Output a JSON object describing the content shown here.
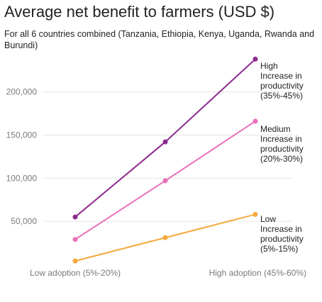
{
  "title": "Average net benefit to farmers (USD $)",
  "subtitle": "For all 6 countries combined (Tanzania, Ethiopia, Kenya, Uganda, Rwanda and Burundi)",
  "chart_data": {
    "type": "line",
    "title": "Average net benefit to farmers (USD $)",
    "subtitle": "For all 6 countries combined (Tanzania, Ethiopia, Kenya, Uganda, Rwanda and Burundi)",
    "x_categories": [
      "Low adoption (5%-20%)",
      "",
      "High adoption (45%-60%)"
    ],
    "y_ticks": [
      50000,
      100000,
      150000,
      200000
    ],
    "y_tick_labels": [
      "50,000",
      "100,000",
      "150,000",
      "200,000"
    ],
    "ylim": [
      0,
      250000
    ],
    "grid": true,
    "legend": "inline labels at line ends",
    "series": [
      {
        "name": "High Increase in productivity (35%-45%)",
        "label_lines": [
          "High",
          "Increase in",
          "productivity",
          "(35%-45%)"
        ],
        "color": "#8b2a8e",
        "values": [
          55000,
          142000,
          238000
        ]
      },
      {
        "name": "Medium Increase in productivity (20%-30%)",
        "label_lines": [
          "Medium",
          "Increase in",
          "productivity",
          "(20%-30%)"
        ],
        "color": "#e86fb8",
        "values": [
          29000,
          97000,
          166000
        ]
      },
      {
        "name": "Low Increase in productivity (5%-15%)",
        "label_lines": [
          "Low",
          "Increase in",
          "productivity",
          "(5%-15%)"
        ],
        "color": "#f5a93b",
        "values": [
          4000,
          31000,
          58000
        ]
      }
    ]
  }
}
